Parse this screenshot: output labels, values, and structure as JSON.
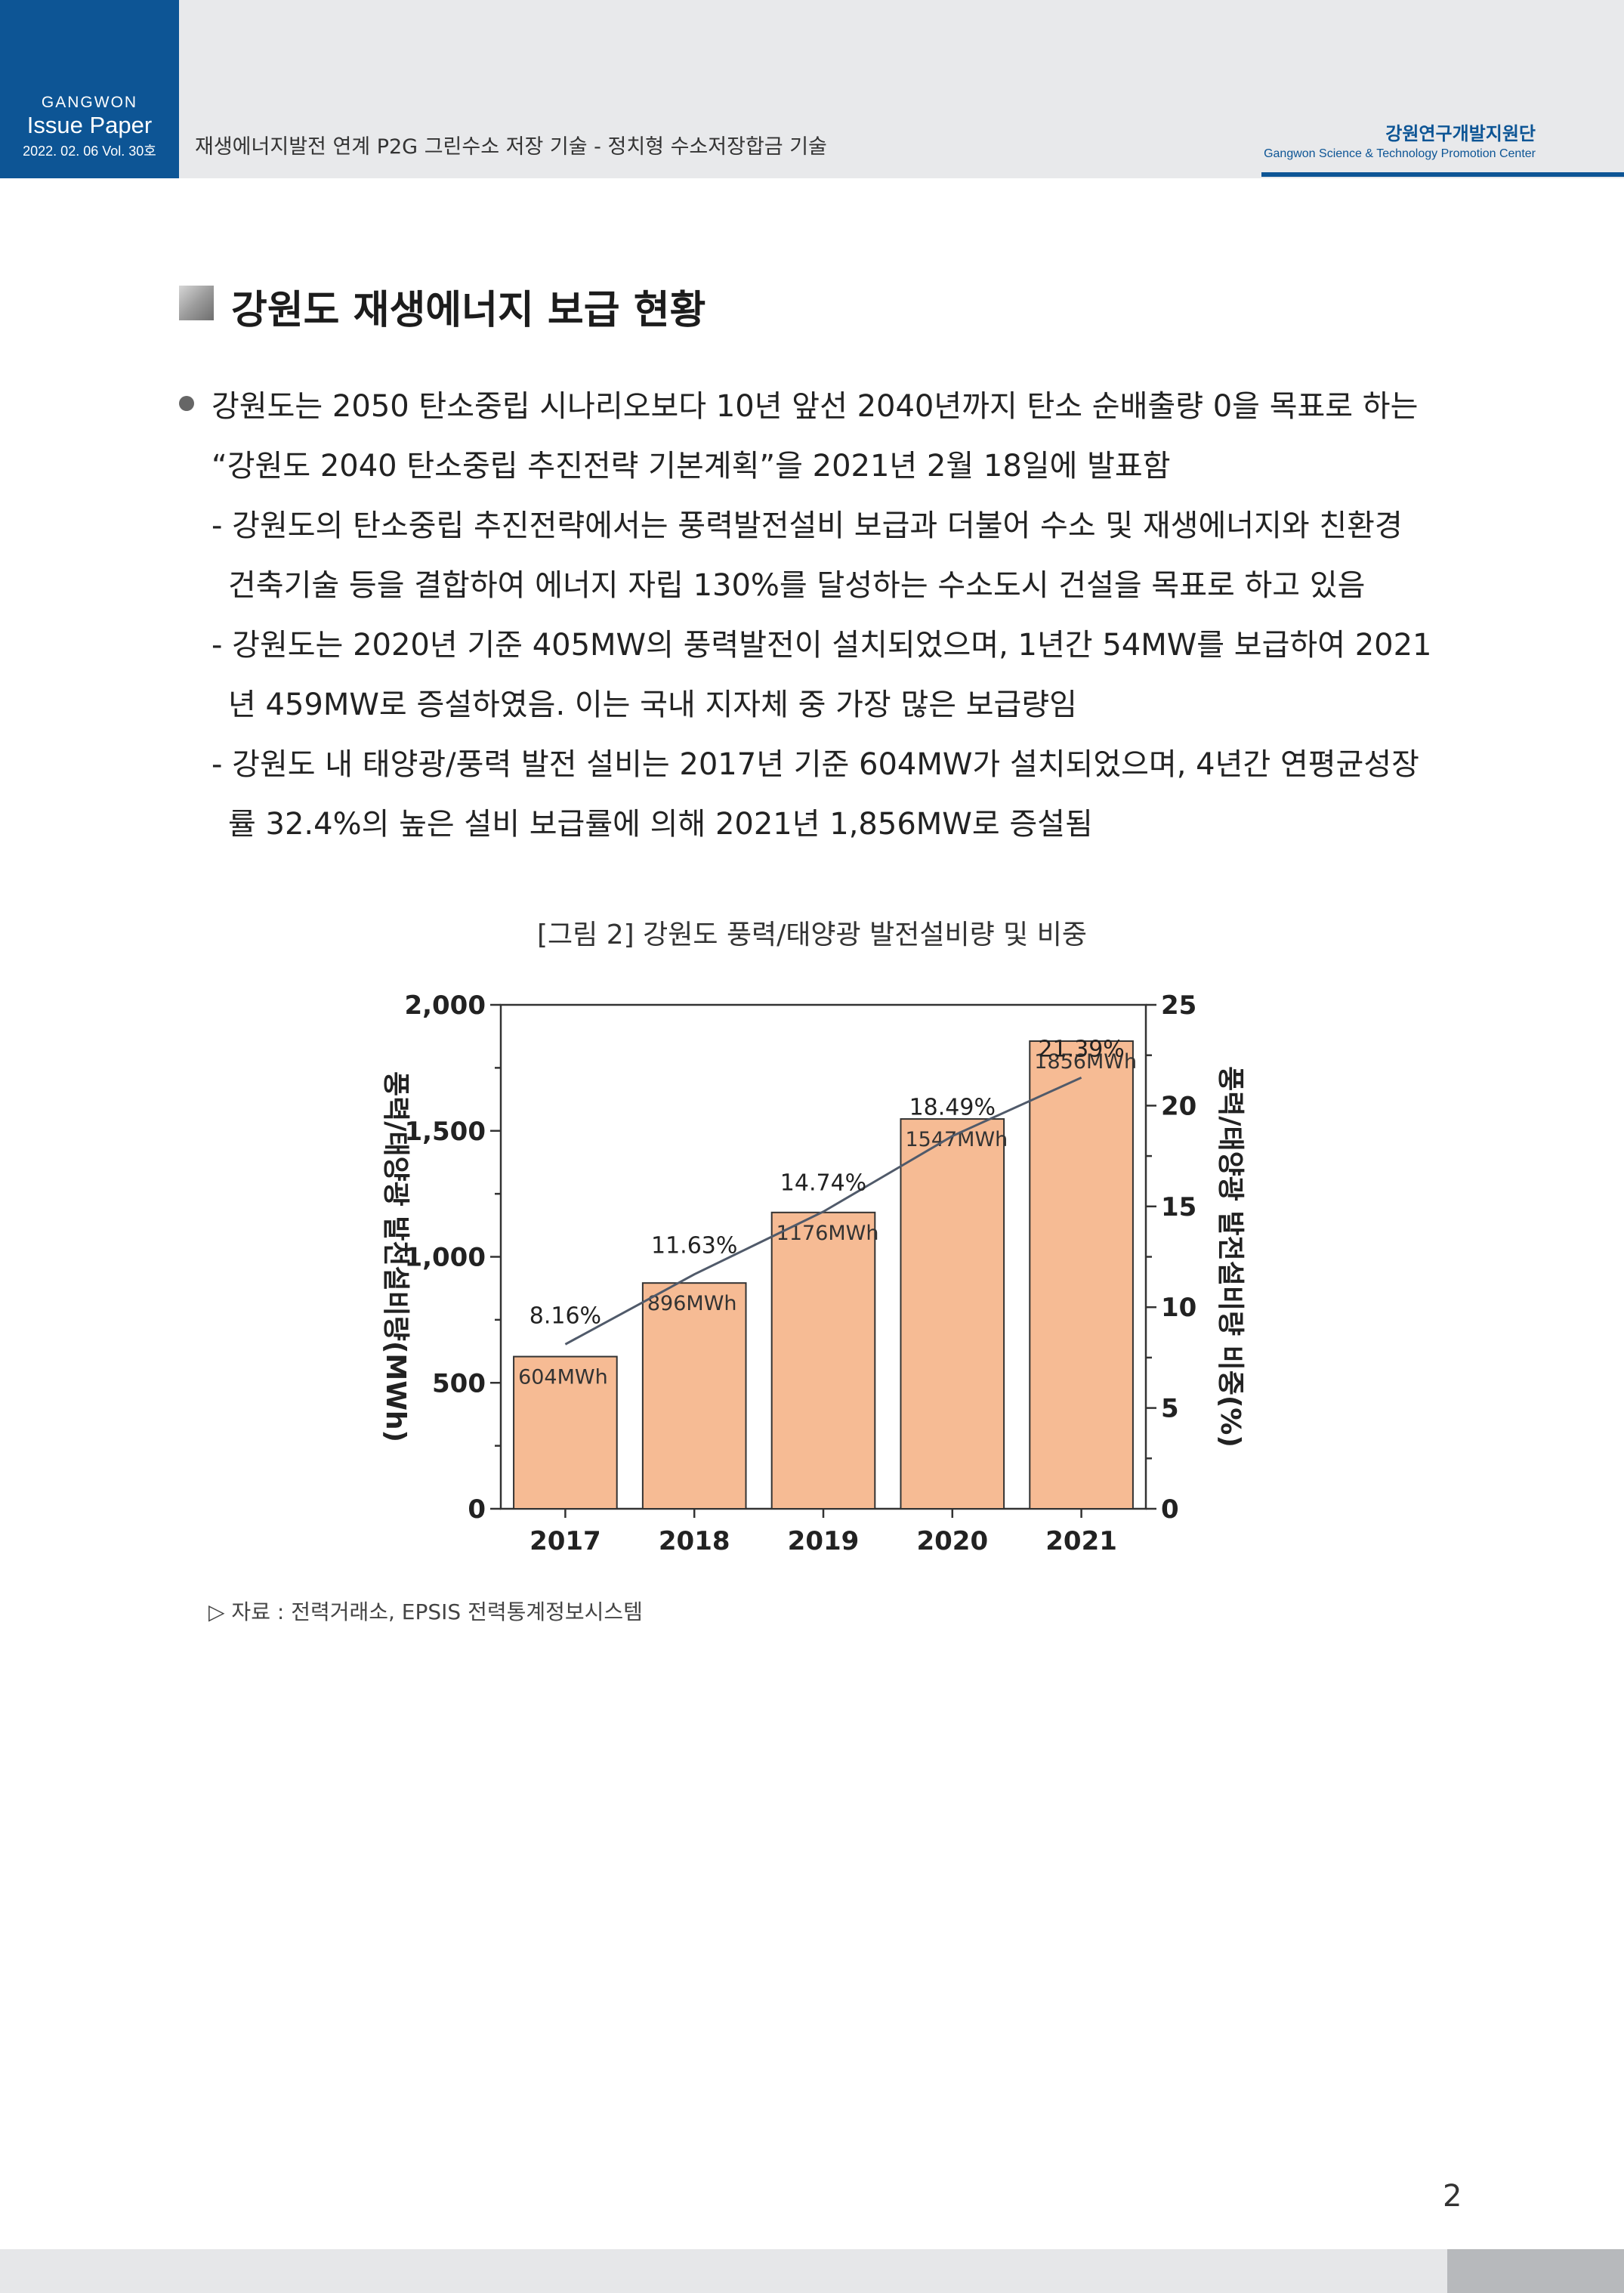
{
  "header": {
    "brand_sub": "GANGWON",
    "brand_title": "Issue Paper",
    "issue_date": "2022. 02. 06 Vol. 30호",
    "doc_title": "재생에너지발전 연계 P2G 그린수소 저장 기술 - 정치형 수소저장합금 기술",
    "org_kr": "강원연구개발지원단",
    "org_en": "Gangwon Science & Technology Promotion Center"
  },
  "section": {
    "title": "강원도 재생에너지 보급 현황"
  },
  "body": {
    "bullet_line1": "강원도는 2050 탄소중립 시나리오보다 10년 앞선 2040년까지 탄소 순배출량 0을 목표로 하는",
    "bullet_line2": "“강원도 2040 탄소중립 추진전략 기본계획”을 2021년 2월 18일에 발표함",
    "sub1_line1": "- 강원도의 탄소중립 추진전략에서는 풍력발전설비 보급과 더불어 수소 및 재생에너지와 친환경",
    "sub1_line2": "건축기술 등을 결합하여 에너지 자립 130%를 달성하는 수소도시 건설을 목표로 하고 있음",
    "sub2_line1": "- 강원도는 2020년 기준 405MW의 풍력발전이 설치되었으며, 1년간 54MW를 보급하여 2021",
    "sub2_line2": "년 459MW로 증설하였음. 이는 국내 지자체 중 가장 많은 보급량임",
    "sub3_line1": "- 강원도 내 태양광/풍력 발전 설비는 2017년 기준 604MW가 설치되었으며, 4년간 연평균성장",
    "sub3_line2": "률 32.4%의 높은 설비 보급률에 의해 2021년 1,856MW로 증설됨"
  },
  "figure": {
    "caption": "[그림 2] 강원도 풍력/태양광 발전설비량 및 비중",
    "source": "▷ 자료 : 전력거래소, EPSIS 전력통계정보시스템"
  },
  "chart_data": {
    "type": "bar",
    "title": "",
    "categories": [
      "2017",
      "2018",
      "2019",
      "2020",
      "2021"
    ],
    "series": [
      {
        "values": [
          604,
          896,
          1176,
          1547,
          1856
        ],
        "labels": [
          "604MWh",
          "896MWh",
          "1176MWh",
          "1547MWh",
          "1856MWh"
        ],
        "color": "#f6bb94",
        "axis": "left",
        "type": "bar"
      },
      {
        "values": [
          8.16,
          11.63,
          14.74,
          18.49,
          21.39
        ],
        "labels": [
          "8.16%",
          "11.63%",
          "14.74%",
          "18.49%",
          "21.39%"
        ],
        "color": "#505a6a",
        "axis": "right",
        "type": "line"
      }
    ],
    "ylabel": "풍력/태양광 발전설비량(MWh)",
    "y2label": "풍력/태양광 발전설비량 비중(%)",
    "ylim": [
      0,
      2000
    ],
    "y2lim": [
      0,
      25
    ],
    "yticks": [
      "0",
      "500",
      "1,000",
      "1,500",
      "2,000"
    ],
    "y2ticks": [
      "0",
      "5",
      "10",
      "15",
      "20",
      "25"
    ]
  },
  "footer": {
    "page_number": "2"
  }
}
